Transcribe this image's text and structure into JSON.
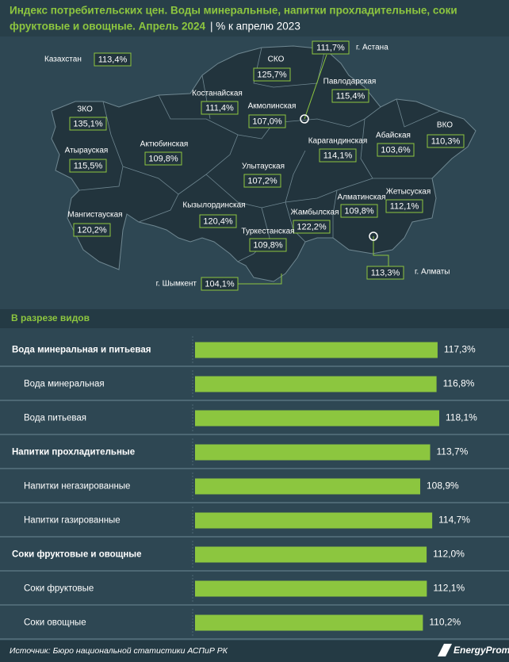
{
  "chart_data": [
    {
      "type": "map",
      "title": "Индекс потребительских цен. Воды минеральные, напитки прохладительные, соки фруктовые и овощные. Апрель 2024",
      "subtitle": "| % к апрелю 2023",
      "regions": [
        {
          "name": "Казахстан",
          "value": 113.4,
          "value_label": "113,4%"
        },
        {
          "name": "ЗКО",
          "value": 135.1,
          "value_label": "135,1%"
        },
        {
          "name": "Атырауская",
          "value": 115.5,
          "value_label": "115,5%"
        },
        {
          "name": "Мангистауская",
          "value": 120.2,
          "value_label": "120,2%"
        },
        {
          "name": "Актюбинская",
          "value": 109.8,
          "value_label": "109,8%"
        },
        {
          "name": "Костанайская",
          "value": 111.4,
          "value_label": "111,4%"
        },
        {
          "name": "СКО",
          "value": 125.7,
          "value_label": "125,7%"
        },
        {
          "name": "г. Астана",
          "value": 111.7,
          "value_label": "111,7%"
        },
        {
          "name": "Павлодарская",
          "value": 115.4,
          "value_label": "115,4%"
        },
        {
          "name": "Акмолинская",
          "value": 107.0,
          "value_label": "107,0%"
        },
        {
          "name": "Абайская",
          "value": 103.6,
          "value_label": "103,6%"
        },
        {
          "name": "ВКО",
          "value": 110.3,
          "value_label": "110,3%"
        },
        {
          "name": "Карагандинская",
          "value": 114.1,
          "value_label": "114,1%"
        },
        {
          "name": "Улытауская",
          "value": 107.2,
          "value_label": "107,2%"
        },
        {
          "name": "Кызылординская",
          "value": 120.4,
          "value_label": "120,4%"
        },
        {
          "name": "Жамбылская",
          "value": 122.2,
          "value_label": "122,2%"
        },
        {
          "name": "Алматинская",
          "value": 109.8,
          "value_label": "109,8%"
        },
        {
          "name": "Жетысуская",
          "value": 112.1,
          "value_label": "112,1%"
        },
        {
          "name": "Туркестанская",
          "value": 109.8,
          "value_label": "109,8%"
        },
        {
          "name": "г. Шымкент",
          "value": 104.1,
          "value_label": "104,1%"
        },
        {
          "name": "г. Алматы",
          "value": 113.3,
          "value_label": "113,3%"
        }
      ]
    },
    {
      "type": "bar",
      "subtitle": "В разрезе видов",
      "color": "#8cc63f",
      "groups": [
        {
          "name": "Вода минеральная и питьевая",
          "value": 117.3,
          "value_label": "117,3%",
          "items": [
            {
              "name": "Вода минеральная",
              "value": 116.8,
              "value_label": "116,8%"
            },
            {
              "name": "Вода питьевая",
              "value": 118.1,
              "value_label": "118,1%"
            }
          ]
        },
        {
          "name": "Напитки прохладительные",
          "value": 113.7,
          "value_label": "113,7%",
          "items": [
            {
              "name": "Напитки негазированные",
              "value": 108.9,
              "value_label": "108,9%"
            },
            {
              "name": "Напитки газированные",
              "value": 114.7,
              "value_label": "114,7%"
            }
          ]
        },
        {
          "name": "Соки фруктовые и овощные",
          "value": 112.0,
          "value_label": "112,0%",
          "items": [
            {
              "name": "Соки фруктовые",
              "value": 112.1,
              "value_label": "112,1%"
            },
            {
              "name": "Соки овощные",
              "value": 110.2,
              "value_label": "110,2%"
            }
          ]
        }
      ]
    }
  ],
  "source": "Источник: Бюро национальной статистики АСПиР РК",
  "logo": "EnergyProm"
}
